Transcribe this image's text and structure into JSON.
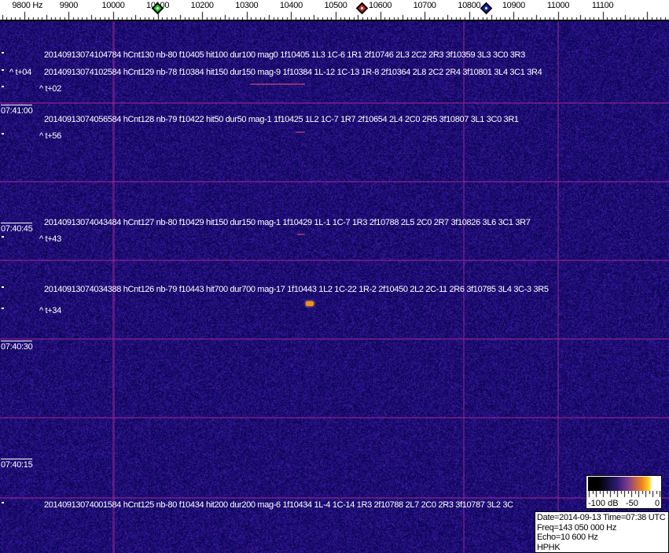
{
  "frequency_axis": {
    "labels": [
      "9800 Hz",
      "9900",
      "10000",
      "10100",
      "10200",
      "10300",
      "10400",
      "10500",
      "10600",
      "10700",
      "10800",
      "10900",
      "11000",
      "11100"
    ],
    "values": [
      9800,
      9900,
      10000,
      10100,
      10200,
      10300,
      10400,
      10500,
      10600,
      10700,
      10800,
      10900,
      11000,
      11100
    ],
    "markers": [
      {
        "name": "green-marker",
        "freq": 10100,
        "color": "#22cc22"
      },
      {
        "name": "red-marker",
        "freq": 10560,
        "color": "#cc2222"
      },
      {
        "name": "blue-marker",
        "freq": 10840,
        "color": "#1a22cc"
      }
    ]
  },
  "time_labels": [
    "07:41:00",
    "07:40:45",
    "07:40:30",
    "07:40:15"
  ],
  "detections": [
    {
      "line": "20140913074104784 hCnt130 nb-80 f10405 hit100 dur100 mag0 1f10405 1L3 1C-6 1R1 2f10746 2L3 2C2 2R3 3f10359 3L3 3C0 3R3",
      "offset": "^ t+04"
    },
    {
      "line": "20140913074102584 hCnt129 nb-78 f10384 hit150 dur150 mag-9 1f10384 1L-12 1C-13 1R-8 2f10364 2L8 2C2 2R4 3f10801 3L4 3C1 3R4",
      "offset": "^ t+02"
    },
    {
      "line": "20140913074056584 hCnt128 nb-79 f10422 hit50 dur50 mag-1 1f10425 1L2 1C-7 1R7 2f10654 2L4 2C0 2R5 3f10807 3L1 3C0 3R1",
      "offset": "^ t+56"
    },
    {
      "line": "20140913074043484 hCnt127 nb-80 f10429 hit150 dur150 mag-1 1f10429 1L-1 1C-7 1R3 2f10788 2L5 2C0 2R7 3f10826 3L6 3C1 3R7",
      "offset": "^ t+43"
    },
    {
      "line": "20140913074034388 hCnt126 nb-79 f10443 hit700 dur700 mag-17 1f10443 1L2 1C-22 1R-2 2f10450 2L2 2C-11 2R6 3f10785 3L4 3C-3 3R5",
      "offset": "^ t+34"
    },
    {
      "line": "20140913074001584 hCnt125 nb-80 f10434 hit200 dur200 mag-6 1f10434 1L-4 1C-14 1R3 2f10788 2L7 2C0 2R3 3f10787 3L2 3C",
      "offset": ""
    }
  ],
  "color_scale": {
    "labels": [
      "-100 dB",
      "-50",
      "0"
    ]
  },
  "info": {
    "date_time": "Date=2014-09-13 Time=07:38 UTC",
    "freq": "Freq=143 050 000 Hz",
    "echo": "Echo=10 600 Hz",
    "station": "HPHK"
  }
}
